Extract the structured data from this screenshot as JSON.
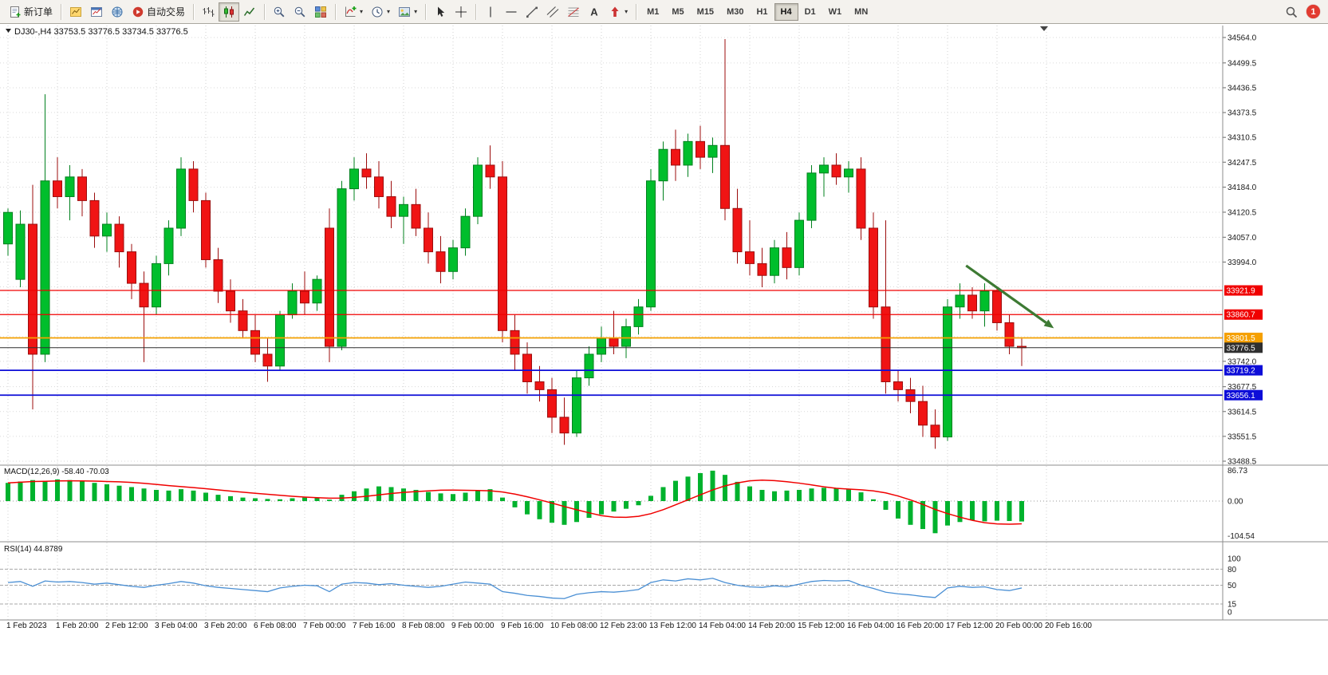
{
  "toolbar": {
    "groups": [
      {
        "items": [
          {
            "name": "new-order-button",
            "icon": "new-order-icon",
            "label": "新订单"
          }
        ]
      },
      {
        "items": [
          {
            "name": "profiles-button",
            "icon": "chart-gold-icon"
          },
          {
            "name": "charts-button",
            "icon": "chart-window-icon"
          },
          {
            "name": "community-button",
            "icon": "globe-icon"
          },
          {
            "name": "autotrading-button",
            "icon": "autotrading-icon",
            "label": "自动交易"
          }
        ]
      },
      {
        "items": [
          {
            "name": "bar-chart-button",
            "icon": "bar-chart-icon"
          },
          {
            "name": "candlestick-button",
            "icon": "candlestick-icon",
            "active": true
          },
          {
            "name": "line-chart-button",
            "icon": "line-chart-icon"
          }
        ]
      },
      {
        "items": [
          {
            "name": "zoom-in-button",
            "icon": "zoom-in-icon"
          },
          {
            "name": "zoom-out-button",
            "icon": "zoom-out-icon"
          },
          {
            "name": "tile-windows-button",
            "icon": "tile-windows-icon"
          }
        ]
      },
      {
        "items": [
          {
            "name": "indicators-button",
            "icon": "indicators-icon",
            "dropdown": true
          },
          {
            "name": "periods-button",
            "icon": "periods-icon",
            "dropdown": true
          },
          {
            "name": "templates-button",
            "icon": "templates-icon",
            "dropdown": true
          }
        ]
      },
      {
        "items": [
          {
            "name": "cursor-button",
            "icon": "cursor-icon"
          },
          {
            "name": "crosshair-button",
            "icon": "crosshair-icon"
          }
        ]
      },
      {
        "items": [
          {
            "name": "vertical-line-button",
            "icon": "vline-icon"
          },
          {
            "name": "horizontal-line-button",
            "icon": "hline-icon"
          },
          {
            "name": "trendline-button",
            "icon": "trendline-icon"
          },
          {
            "name": "channel-button",
            "icon": "channel-icon"
          },
          {
            "name": "fibonacci-button",
            "icon": "fibonacci-icon"
          },
          {
            "name": "text-button",
            "icon": "text-icon"
          },
          {
            "name": "arrows-button",
            "icon": "arrows-icon",
            "dropdown": true
          }
        ]
      }
    ],
    "timeframes": {
      "items": [
        "M1",
        "M5",
        "M15",
        "M30",
        "H1",
        "H4",
        "D1",
        "W1",
        "MN"
      ],
      "active": "H4"
    },
    "notification_count": "1"
  },
  "chart_title": {
    "symbol": "DJ30-",
    "timeframe": "H4",
    "open": "33753.5",
    "high": "33776.5",
    "low": "33734.5",
    "close": "33776.5",
    "text": "DJ30-,H4 33753.5 33776.5 33734.5 33776.5"
  },
  "chart_data": {
    "type": "candlestick",
    "symbol": "DJ30-",
    "period": "H4",
    "up_color": "#00be2c",
    "down_color": "#f01414",
    "price_range": [
      33488.5,
      34564.0
    ],
    "x_labels": [
      "1 Feb 2023",
      "1 Feb 20:00",
      "2 Feb 12:00",
      "3 Feb 04:00",
      "3 Feb 20:00",
      "6 Feb 08:00",
      "7 Feb 00:00",
      "7 Feb 16:00",
      "8 Feb 08:00",
      "9 Feb 00:00",
      "9 Feb 16:00",
      "10 Feb 08:00",
      "12 Feb 23:00",
      "13 Feb 12:00",
      "14 Feb 04:00",
      "14 Feb 20:00",
      "15 Feb 12:00",
      "16 Feb 04:00",
      "16 Feb 20:00",
      "17 Feb 12:00",
      "20 Feb 00:00",
      "20 Feb 16:00"
    ],
    "price_axis_labels": [
      "34564.0",
      "34499.5",
      "34436.5",
      "34373.5",
      "34310.5",
      "34247.5",
      "34184.0",
      "34120.5",
      "34057.0",
      "33994.0",
      "33742.0",
      "33677.5",
      "33614.5",
      "33551.5",
      "33488.5"
    ],
    "price_grid_extra": [
      33931.0,
      33867.5,
      33804.5
    ],
    "candles": [
      [
        34040,
        34130,
        34010,
        34120
      ],
      [
        33950,
        34125,
        33930,
        34090
      ],
      [
        34090,
        34190,
        33620,
        33760
      ],
      [
        33760,
        34420,
        33740,
        34200
      ],
      [
        34200,
        34260,
        34130,
        34160
      ],
      [
        34160,
        34240,
        34100,
        34210
      ],
      [
        34210,
        34230,
        34110,
        34150
      ],
      [
        34150,
        34170,
        34030,
        34060
      ],
      [
        34060,
        34120,
        34020,
        34090
      ],
      [
        34090,
        34110,
        33980,
        34020
      ],
      [
        34020,
        34040,
        33900,
        33940
      ],
      [
        33940,
        33970,
        33740,
        33880
      ],
      [
        33880,
        34010,
        33860,
        33990
      ],
      [
        33990,
        34100,
        33960,
        34080
      ],
      [
        34080,
        34260,
        34060,
        34230
      ],
      [
        34230,
        34250,
        34120,
        34150
      ],
      [
        34150,
        34170,
        33980,
        34000
      ],
      [
        34000,
        34030,
        33890,
        33920
      ],
      [
        33920,
        33950,
        33840,
        33870
      ],
      [
        33870,
        33900,
        33800,
        33820
      ],
      [
        33820,
        33860,
        33740,
        33760
      ],
      [
        33760,
        33800,
        33690,
        33730
      ],
      [
        33730,
        33870,
        33720,
        33860
      ],
      [
        33860,
        33940,
        33850,
        33920
      ],
      [
        33920,
        33970,
        33860,
        33890
      ],
      [
        33890,
        33960,
        33870,
        33950
      ],
      [
        34080,
        34130,
        33740,
        33780
      ],
      [
        33780,
        34200,
        33770,
        34180
      ],
      [
        34180,
        34260,
        34150,
        34230
      ],
      [
        34230,
        34270,
        34180,
        34210
      ],
      [
        34210,
        34250,
        34130,
        34160
      ],
      [
        34160,
        34200,
        34080,
        34110
      ],
      [
        34110,
        34160,
        34040,
        34140
      ],
      [
        34140,
        34180,
        34060,
        34080
      ],
      [
        34080,
        34120,
        33990,
        34020
      ],
      [
        34020,
        34060,
        33940,
        33970
      ],
      [
        33970,
        34050,
        33950,
        34030
      ],
      [
        34030,
        34130,
        34010,
        34110
      ],
      [
        34110,
        34260,
        34090,
        34240
      ],
      [
        34240,
        34290,
        34180,
        34210
      ],
      [
        34210,
        34250,
        33790,
        33820
      ],
      [
        33820,
        33860,
        33720,
        33760
      ],
      [
        33760,
        33790,
        33660,
        33690
      ],
      [
        33690,
        33730,
        33640,
        33670
      ],
      [
        33670,
        33700,
        33560,
        33600
      ],
      [
        33600,
        33650,
        33530,
        33560
      ],
      [
        33560,
        33720,
        33550,
        33700
      ],
      [
        33700,
        33780,
        33680,
        33760
      ],
      [
        33760,
        33830,
        33740,
        33800
      ],
      [
        33800,
        33870,
        33760,
        33780
      ],
      [
        33780,
        33850,
        33750,
        33830
      ],
      [
        33830,
        33900,
        33810,
        33880
      ],
      [
        33880,
        34230,
        33870,
        34200
      ],
      [
        34200,
        34300,
        34150,
        34280
      ],
      [
        34280,
        34330,
        34200,
        34240
      ],
      [
        34240,
        34320,
        34210,
        34300
      ],
      [
        34300,
        34340,
        34230,
        34260
      ],
      [
        34260,
        34310,
        34220,
        34290
      ],
      [
        34290,
        34560,
        34100,
        34130
      ],
      [
        34130,
        34180,
        33990,
        34020
      ],
      [
        34020,
        34100,
        33960,
        33990
      ],
      [
        33990,
        34030,
        33930,
        33960
      ],
      [
        33960,
        34050,
        33940,
        34030
      ],
      [
        34030,
        34070,
        33950,
        33980
      ],
      [
        33980,
        34120,
        33960,
        34100
      ],
      [
        34100,
        34240,
        34080,
        34220
      ],
      [
        34220,
        34260,
        34160,
        34240
      ],
      [
        34240,
        34270,
        34190,
        34210
      ],
      [
        34210,
        34250,
        34170,
        34230
      ],
      [
        34230,
        34260,
        34050,
        34080
      ],
      [
        34080,
        34120,
        33850,
        33880
      ],
      [
        33880,
        34100,
        33660,
        33690
      ],
      [
        33690,
        33720,
        33640,
        33670
      ],
      [
        33670,
        33700,
        33610,
        33640
      ],
      [
        33640,
        33680,
        33550,
        33580
      ],
      [
        33580,
        33620,
        33520,
        33550
      ],
      [
        33550,
        33900,
        33540,
        33880
      ],
      [
        33880,
        33940,
        33850,
        33910
      ],
      [
        33910,
        33930,
        33850,
        33870
      ],
      [
        33870,
        33940,
        33830,
        33920
      ],
      [
        33920,
        33930,
        33820,
        33840
      ],
      [
        33840,
        33860,
        33760,
        33780
      ],
      [
        33780,
        33800,
        33730,
        33776.5
      ]
    ],
    "levels": [
      {
        "value": 33921.9,
        "label": "33921.9",
        "color": "#f00000",
        "width": 1.2,
        "dash": ""
      },
      {
        "value": 33860.7,
        "label": "33860.7",
        "color": "#f00000",
        "width": 1.2,
        "dash": ""
      },
      {
        "value": 33801.5,
        "label": "33801.5",
        "color": "#f5a000",
        "width": 1.8,
        "dash": ""
      },
      {
        "value": 33776.5,
        "label": "33776.5",
        "color": "#2f2f2f",
        "width": 1,
        "dash": "",
        "role": "bid"
      },
      {
        "value": 33719.2,
        "label": "33719.2",
        "color": "#0d0dd8",
        "width": 1.8,
        "dash": ""
      },
      {
        "value": 33656.1,
        "label": "33656.1",
        "color": "#0d0dd8",
        "width": 1.8,
        "dash": ""
      }
    ],
    "arrow_annotation": {
      "x1_bar": 77.5,
      "y1_price": 33985,
      "x2_bar": 84.6,
      "y2_price": 33826,
      "color": "#3d7a33"
    },
    "indicators": [
      {
        "name": "macd",
        "label": "MACD(12,26,9)",
        "display_values": "-58.40 -70.03",
        "histogram_color": "#00b22d",
        "signal_color": "#f00000",
        "signal_period": 9,
        "scale_labels": [
          "86.73",
          "0.00",
          "-104.54"
        ],
        "macd_line": [
          52,
          56,
          60,
          58,
          62,
          60,
          56,
          52,
          48,
          44,
          40,
          36,
          32,
          30,
          34,
          30,
          24,
          18,
          14,
          10,
          8,
          6,
          5,
          8,
          10,
          9,
          4,
          18,
          28,
          36,
          42,
          40,
          36,
          32,
          26,
          22,
          20,
          24,
          30,
          34,
          10,
          -18,
          -38,
          -52,
          -62,
          -68,
          -60,
          -48,
          -38,
          -30,
          -22,
          -12,
          15,
          40,
          58,
          70,
          80,
          87,
          75,
          55,
          42,
          32,
          28,
          30,
          32,
          36,
          38,
          36,
          33,
          25,
          5,
          -25,
          -50,
          -68,
          -80,
          -92,
          -70,
          -60,
          -55,
          -58,
          -56,
          -57,
          -58.4
        ]
      },
      {
        "name": "rsi",
        "label": "RSI(14)",
        "display_value": "44.8789",
        "line_color": "#4a8fd4",
        "level_lines": [
          80,
          50,
          15
        ],
        "scale_labels": [
          "100",
          "80",
          "50",
          "15",
          "0"
        ],
        "values": [
          55,
          57,
          48,
          58,
          56,
          57,
          55,
          52,
          54,
          51,
          48,
          46,
          50,
          53,
          57,
          54,
          49,
          46,
          44,
          42,
          40,
          38,
          45,
          48,
          50,
          49,
          38,
          52,
          55,
          54,
          51,
          53,
          50,
          48,
          46,
          48,
          52,
          56,
          54,
          52,
          38,
          35,
          31,
          29,
          26,
          25,
          33,
          36,
          38,
          37,
          39,
          42,
          55,
          60,
          58,
          62,
          60,
          63,
          55,
          50,
          47,
          46,
          49,
          47,
          52,
          57,
          59,
          58,
          59,
          50,
          44,
          37,
          34,
          32,
          29,
          27,
          45,
          48,
          46,
          47,
          42,
          40,
          44.88
        ]
      }
    ]
  }
}
